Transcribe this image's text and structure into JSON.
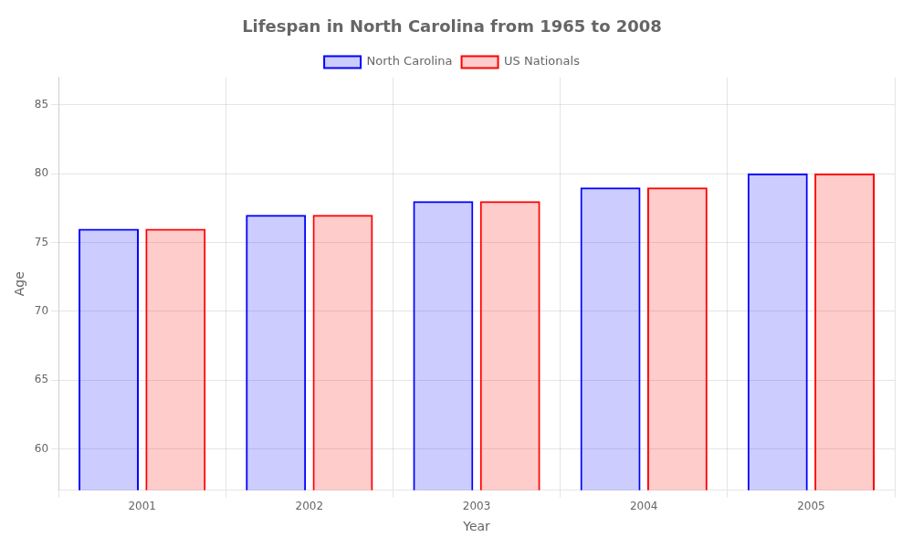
{
  "chart_data": {
    "type": "bar",
    "title": "Lifespan in North Carolina from 1965 to 2008",
    "xlabel": "Year",
    "ylabel": "Age",
    "categories": [
      2001,
      2002,
      2003,
      2004,
      2005
    ],
    "series": [
      {
        "name": "North Carolina",
        "color": "#0000ff",
        "values": [
          76,
          77,
          78,
          79,
          80
        ]
      },
      {
        "name": "US Nationals",
        "color": "#ff0000",
        "values": [
          76,
          77,
          78,
          79,
          80
        ]
      }
    ],
    "ylim": [
      57,
      87
    ],
    "yticks": [
      60,
      65,
      70,
      75,
      80,
      85
    ],
    "grid": true,
    "legend": "top"
  }
}
